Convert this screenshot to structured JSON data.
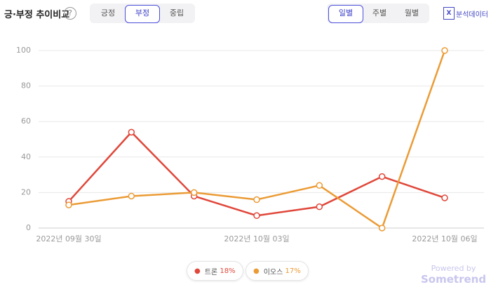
{
  "header": {
    "title": "긍·부정 추이비교",
    "help": "?",
    "sentiment_tabs": [
      "긍정",
      "부정",
      "중립"
    ],
    "period_tabs": [
      "일별",
      "주별",
      "월별"
    ],
    "export": "분석데이터",
    "export_icon": "X"
  },
  "chart_data": {
    "type": "line",
    "categories": [
      "2022년 09월 30일",
      null,
      null,
      "2022년 10월 03일",
      null,
      null,
      "2022년 10월 06일"
    ],
    "series": [
      {
        "name": "트론",
        "color": "#e0473a",
        "values": [
          15,
          54,
          18,
          7,
          12,
          29,
          17
        ],
        "share": "18%"
      },
      {
        "name": "이오스",
        "color": "#eb9b35",
        "values": [
          13,
          18,
          20,
          16,
          24,
          0,
          100
        ],
        "share": "17%"
      }
    ],
    "ylim": [
      0,
      100
    ],
    "yticks": [
      0,
      20,
      40,
      60,
      80,
      100
    ],
    "grid": true
  },
  "footer": {
    "powered": "Powered by",
    "brand": "Sometrend"
  }
}
